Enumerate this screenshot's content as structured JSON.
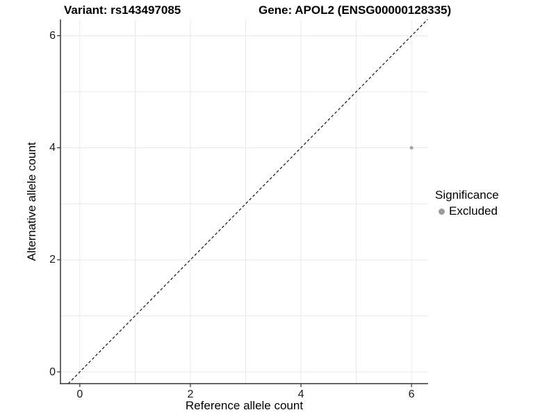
{
  "chart_data": {
    "type": "scatter",
    "title_left": "Variant: rs143497085",
    "title_right": "Gene: APOL2 (ENSG00000128335)",
    "xlabel": "Reference allele count",
    "ylabel": "Alternative allele count",
    "xlim": [
      -0.35,
      6.3
    ],
    "ylim": [
      -0.21,
      6.29
    ],
    "x_ticks": [
      0,
      2,
      4,
      6
    ],
    "y_ticks": [
      0,
      2,
      4,
      6
    ],
    "grid_values": [
      0,
      1,
      2,
      3,
      4,
      5,
      6
    ],
    "grid": "on",
    "points": [
      {
        "x": 6,
        "y": 4,
        "series": "Excluded"
      }
    ],
    "identity_line": {
      "slope": 1,
      "intercept": 0,
      "style": "dashed"
    },
    "legend": {
      "title": "Significance",
      "position": "right",
      "items": [
        {
          "label": "Excluded",
          "color": "#9b9b9b"
        }
      ]
    },
    "colors": {
      "point": "#a8a8a8",
      "grid": "#e9e9e9",
      "axis": "#333333",
      "dashed_line": "#111111",
      "tick_mark": "#333333"
    }
  }
}
